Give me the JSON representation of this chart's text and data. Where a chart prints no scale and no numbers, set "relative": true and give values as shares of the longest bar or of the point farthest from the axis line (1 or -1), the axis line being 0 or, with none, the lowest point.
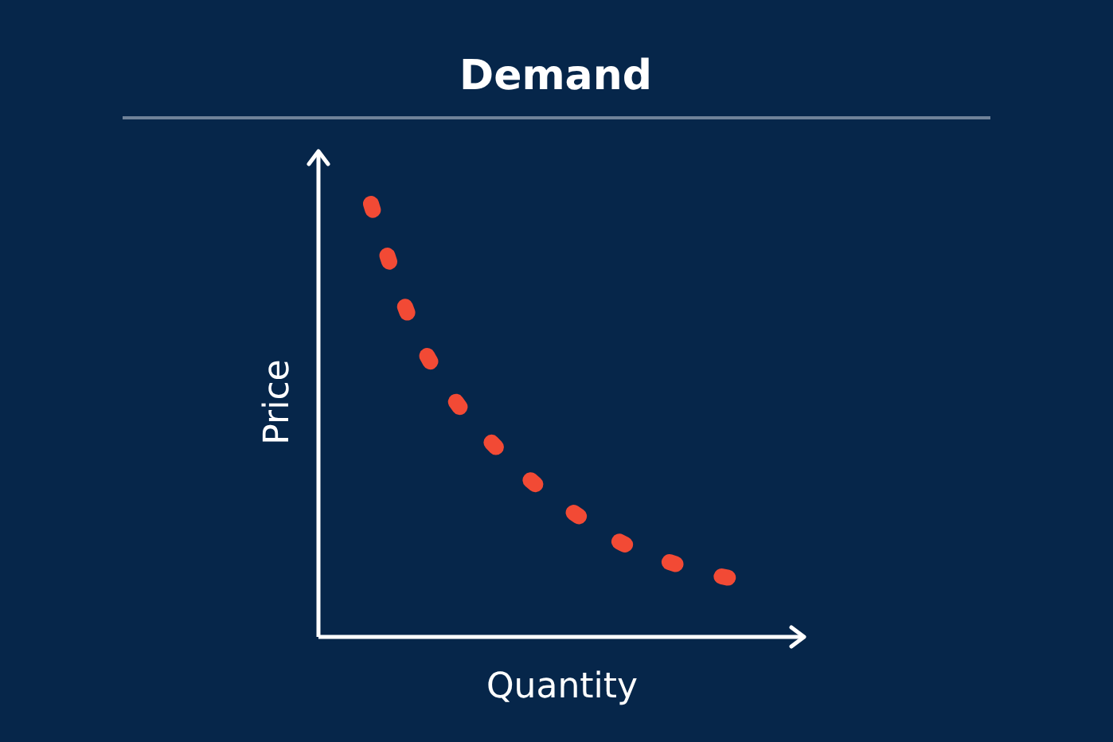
{
  "chart_data": {
    "type": "line",
    "title": "Demand",
    "xlabel": "Quantity",
    "ylabel": "Price",
    "relative": true,
    "line_style": "dashed",
    "categories": [
      null,
      null,
      null,
      null,
      null,
      null,
      null,
      null,
      null,
      null
    ],
    "series": [
      {
        "color": "#f24a35",
        "values": [
          1,
          0.72,
          0.55,
          0.44,
          0.35,
          0.28,
          0.22,
          0.18,
          0.15,
          0.13
        ]
      }
    ]
  }
}
